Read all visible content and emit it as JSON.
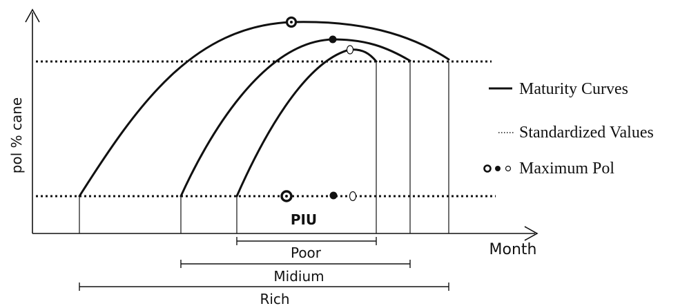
{
  "axes": {
    "y_label": "pol % cane",
    "x_label": "Month"
  },
  "annotations": {
    "piu": "PIU"
  },
  "legend": {
    "maturity_curves": "Maturity Curves",
    "standardized_values": "Standardized Values",
    "maximum_pol": "Maximum Pol"
  },
  "ranges": {
    "poor": "Poor",
    "medium": "Midium",
    "rich": "Rich"
  },
  "colors": {
    "ink": "#111111",
    "background": "#ffffff"
  }
}
